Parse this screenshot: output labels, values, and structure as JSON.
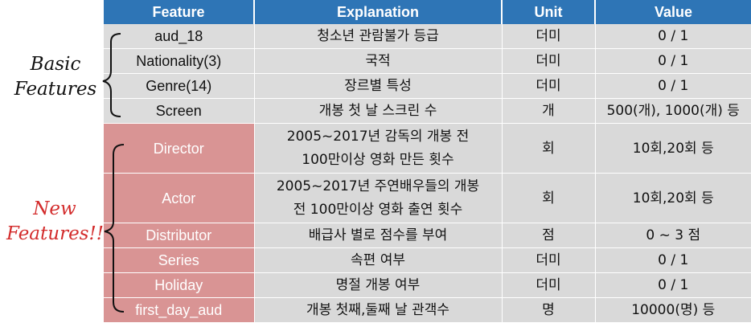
{
  "table": {
    "headers": [
      "Feature",
      "Explanation",
      "Unit",
      "Value"
    ],
    "basic_rows": [
      {
        "feature": "aud_18",
        "explanation": "청소년 관람불가 등급",
        "unit": "더미",
        "value": "0 / 1"
      },
      {
        "feature": "Nationality(3)",
        "explanation": "국적",
        "unit": "더미",
        "value": "0 / 1"
      },
      {
        "feature": "Genre(14)",
        "explanation": "장르별 특성",
        "unit": "더미",
        "value": "0 / 1"
      },
      {
        "feature": "Screen",
        "explanation": "개봉 첫 날 스크린 수",
        "unit": "개",
        "value": "500(개), 1000(개) 등"
      }
    ],
    "new_rows": [
      {
        "feature": "Director",
        "explanation_line1": "2005~2017년 감독의 개봉 전",
        "explanation_line2": "100만이상 영화 만든 횟수",
        "unit": "회",
        "value": "10회,20회 등"
      },
      {
        "feature": "Actor",
        "explanation_line1": "2005~2017년 주연배우들의 개봉",
        "explanation_line2": "전 100만이상 영화 출연 횟수",
        "unit": "회",
        "value": "10회,20회 등"
      },
      {
        "feature": "Distributor",
        "explanation": "배급사 별로 점수를 부여",
        "unit": "점",
        "value": "0 ~ 3 점"
      },
      {
        "feature": "Series",
        "explanation": "속편 여부",
        "unit": "더미",
        "value": "0 / 1"
      },
      {
        "feature": "Holiday",
        "explanation": "명절 개봉 여부",
        "unit": "더미",
        "value": "0 / 1"
      },
      {
        "feature": "first_day_aud",
        "explanation": "개봉 첫째,둘째 날 관객수",
        "unit": "명",
        "value": "10000(명) 등"
      }
    ]
  },
  "labels": {
    "basic_line1": "Basic",
    "basic_line2": "Features",
    "new_line1": "New",
    "new_line2": "Features!!"
  },
  "colors": {
    "header_bg": "#2e75b6",
    "basic_row_bg": "#dcdcdc",
    "new_feature_bg": "#d99494",
    "new_label": "#d32b2b"
  }
}
